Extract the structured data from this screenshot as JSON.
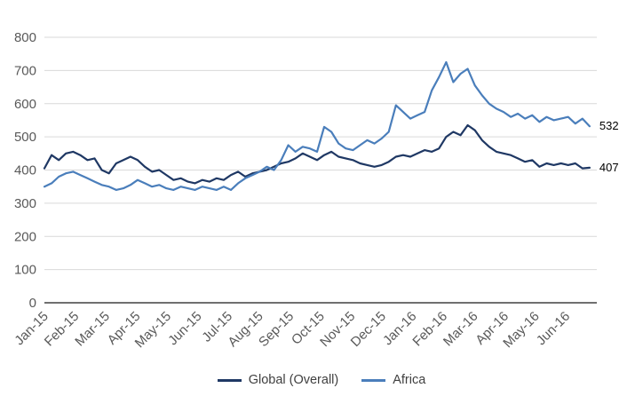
{
  "chart_data": {
    "type": "line",
    "title": "",
    "xlabel": "",
    "ylabel": "",
    "ylim": [
      0,
      800
    ],
    "yticks": [
      0,
      100,
      200,
      300,
      400,
      500,
      600,
      700,
      800
    ],
    "grid": "horizontal",
    "grid_color": "#D9D9D9",
    "axis_color": "#404040",
    "legend_position": "bottom",
    "x_tick_labels": [
      "Jan-15",
      "Feb-15",
      "Mar-15",
      "Apr-15",
      "May-15",
      "Jun-15",
      "Jul-15",
      "Aug-15",
      "Sep-15",
      "Oct-15",
      "Nov-15",
      "Dec-15",
      "Jan-16",
      "Feb-16",
      "Mar-16",
      "Apr-16",
      "May-16",
      "Jun-16"
    ],
    "series": [
      {
        "name": "Global (Overall)",
        "color": "#1F3864",
        "end_label": "407",
        "values": [
          405,
          445,
          430,
          450,
          455,
          445,
          430,
          435,
          400,
          390,
          420,
          430,
          440,
          430,
          410,
          395,
          400,
          385,
          370,
          375,
          365,
          360,
          370,
          365,
          375,
          370,
          385,
          395,
          380,
          390,
          395,
          400,
          410,
          420,
          425,
          435,
          450,
          440,
          430,
          445,
          455,
          440,
          435,
          430,
          420,
          415,
          410,
          415,
          425,
          440,
          445,
          440,
          450,
          460,
          455,
          465,
          500,
          515,
          505,
          535,
          520,
          490,
          470,
          455,
          450,
          445,
          435,
          425,
          430,
          410,
          420,
          415,
          420,
          415,
          420,
          405,
          407
        ]
      },
      {
        "name": "Africa",
        "color": "#4A7EBB",
        "end_label": "532",
        "values": [
          350,
          360,
          380,
          390,
          395,
          385,
          375,
          365,
          355,
          350,
          340,
          345,
          355,
          370,
          360,
          350,
          355,
          345,
          340,
          350,
          345,
          340,
          350,
          345,
          340,
          350,
          340,
          360,
          375,
          385,
          395,
          410,
          400,
          430,
          475,
          455,
          470,
          465,
          455,
          530,
          515,
          480,
          465,
          460,
          475,
          490,
          480,
          495,
          515,
          595,
          575,
          555,
          565,
          575,
          640,
          680,
          725,
          665,
          690,
          705,
          655,
          625,
          600,
          585,
          575,
          560,
          570,
          555,
          565,
          545,
          560,
          550,
          555,
          560,
          540,
          555,
          532
        ]
      }
    ]
  },
  "legend": {
    "items": [
      {
        "label": "Global (Overall)"
      },
      {
        "label": "Africa"
      }
    ]
  }
}
